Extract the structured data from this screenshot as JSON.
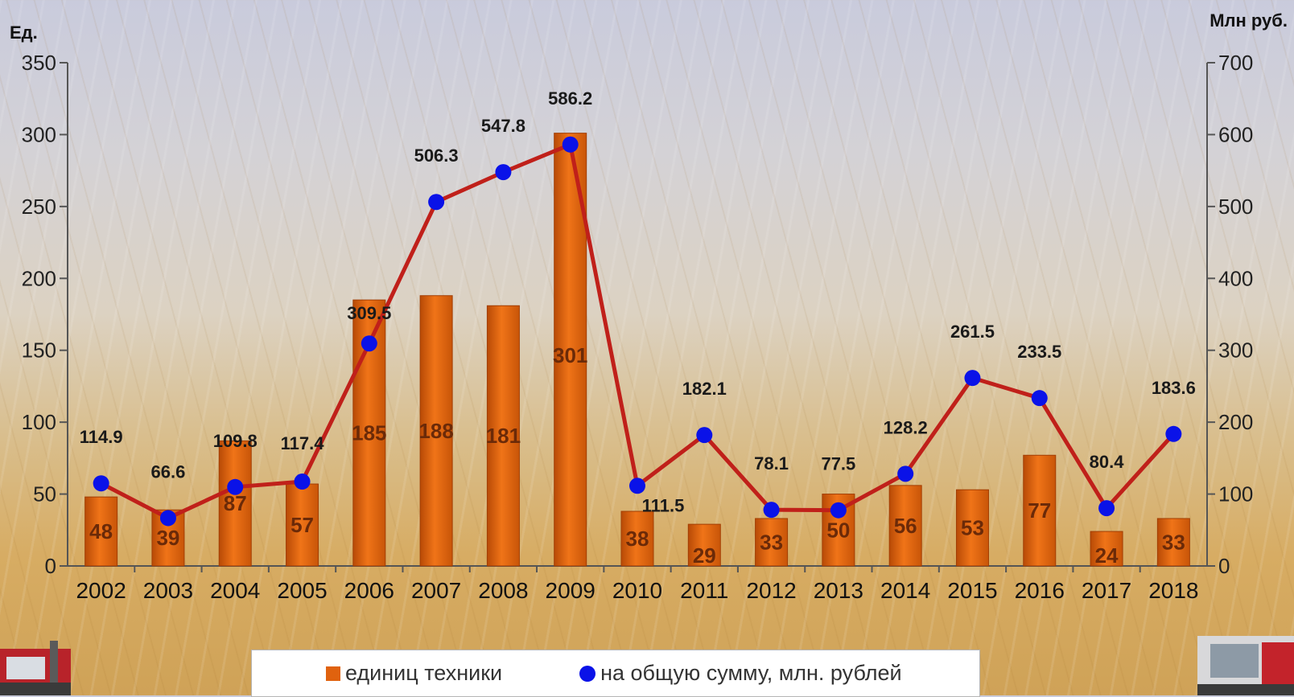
{
  "chart_data": {
    "type": "bar",
    "left_axis_unit": "Ед.",
    "right_axis_unit": "Млн руб.",
    "categories": [
      "2002",
      "2003",
      "2004",
      "2005",
      "2006",
      "2007",
      "2008",
      "2009",
      "2010",
      "2011",
      "2012",
      "2013",
      "2014",
      "2015",
      "2016",
      "2017",
      "2018"
    ],
    "series": [
      {
        "name": "единиц техники",
        "type": "bar",
        "axis": "left",
        "color": "#e0620e",
        "values": [
          48,
          39,
          87,
          57,
          185,
          188,
          181,
          301,
          38,
          29,
          33,
          50,
          56,
          53,
          77,
          24,
          33
        ],
        "labels": [
          "48",
          "39",
          "87",
          "57",
          "185",
          "188",
          "181",
          "301",
          "38",
          "29",
          "33",
          "50",
          "56",
          "53",
          "77",
          "24",
          "33"
        ]
      },
      {
        "name": "на общую сумму, млн. рублей",
        "type": "line",
        "axis": "right",
        "color": "#c0201a",
        "marker_color": "#0a12e8",
        "values": [
          114.9,
          66.6,
          109.8,
          117.4,
          309.5,
          506.3,
          547.8,
          586.2,
          111.5,
          182.1,
          78.1,
          77.5,
          128.2,
          261.5,
          233.5,
          80.4,
          183.6
        ],
        "labels": [
          "114.9",
          "66.6",
          "109.8",
          "117.4",
          "309.5",
          "506.3",
          "547.8",
          "586.2",
          "111.5",
          "182.1",
          "78.1",
          "77.5",
          "128.2",
          "261.5",
          "233.5",
          "80.4",
          "183.6"
        ]
      }
    ],
    "ylim_left": [
      0,
      350
    ],
    "yticks_left": [
      "0",
      "50",
      "100",
      "150",
      "200",
      "250",
      "300",
      "350"
    ],
    "ylim_right": [
      0,
      700
    ],
    "yticks_right": [
      "0",
      "100",
      "200",
      "300",
      "400",
      "500",
      "600",
      "700"
    ],
    "grid": false,
    "legend_position": "bottom"
  },
  "legend": {
    "bar_label": "единиц техники",
    "line_label": "на общую сумму, млн. рублей"
  }
}
